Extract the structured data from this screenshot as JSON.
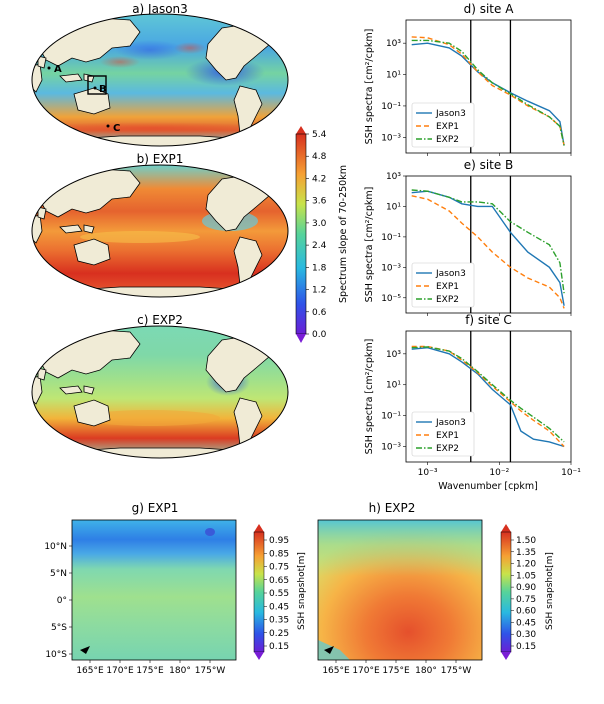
{
  "maps": [
    {
      "title": "a) Jason3",
      "site_labels": [
        "A",
        "B",
        "C"
      ]
    },
    {
      "title": "b) EXP1"
    },
    {
      "title": "c) EXP2"
    }
  ],
  "slope_colorbar": {
    "label": "Spectrum slope of 70-250km",
    "ticks": [
      "5.4",
      "4.8",
      "4.2",
      "3.6",
      "3.0",
      "2.4",
      "1.8",
      "1.2",
      "0.6",
      "0.0"
    ],
    "colormap": "rainbow (purple-blue-cyan-green-yellow-orange-red)"
  },
  "spectra": {
    "xlabel": "Wavenumber [cpkm]",
    "ylabel": "SSH spectra [cm²/cpkm]",
    "xticks": [
      "10⁻³",
      "10⁻²",
      "10⁻¹"
    ],
    "legend": [
      "Jason3",
      "EXP1",
      "EXP2"
    ],
    "colors": {
      "Jason3": "#1f77b4",
      "EXP1": "#ff7f0e",
      "EXP2": "#2ca02c"
    },
    "panels": [
      {
        "title": "d) site A",
        "yticks": [
          "10³",
          "10¹",
          "10⁻¹",
          "10⁻³"
        ]
      },
      {
        "title": "e) site B",
        "yticks": [
          "10³",
          "10¹",
          "10⁻¹",
          "10⁻³",
          "10⁻⁵"
        ]
      },
      {
        "title": "f) site C",
        "yticks": [
          "10³",
          "10¹",
          "10⁻¹",
          "10⁻³"
        ]
      }
    ]
  },
  "chart_data": [
    {
      "type": "line",
      "title": "d) site A",
      "log_x": true,
      "log_y": true,
      "xlim": [
        0.0005,
        0.1
      ],
      "ylim": [
        0.0001,
        30000
      ],
      "xlabel": "",
      "ylabel": "SSH spectra [cm²/cpkm]",
      "vlines": [
        0.004,
        0.0143
      ],
      "legend_loc": "lower-left",
      "series": [
        {
          "name": "Jason3",
          "points": [
            [
              0.0006,
              800
            ],
            [
              0.001,
              1000
            ],
            [
              0.002,
              500
            ],
            [
              0.003,
              150
            ],
            [
              0.005,
              15
            ],
            [
              0.008,
              3
            ],
            [
              0.0143,
              0.7
            ],
            [
              0.025,
              0.2
            ],
            [
              0.05,
              0.05
            ],
            [
              0.07,
              0.01
            ],
            [
              0.08,
              0.0003
            ]
          ]
        },
        {
          "name": "EXP1",
          "points": [
            [
              0.0006,
              2500
            ],
            [
              0.001,
              2200
            ],
            [
              0.002,
              800
            ],
            [
              0.003,
              200
            ],
            [
              0.005,
              15
            ],
            [
              0.008,
              2
            ],
            [
              0.0143,
              0.5
            ],
            [
              0.025,
              0.1
            ],
            [
              0.05,
              0.02
            ],
            [
              0.07,
              0.005
            ],
            [
              0.08,
              0.0003
            ]
          ]
        },
        {
          "name": "EXP2",
          "points": [
            [
              0.0006,
              1500
            ],
            [
              0.001,
              1500
            ],
            [
              0.002,
              1000
            ],
            [
              0.003,
              300
            ],
            [
              0.005,
              20
            ],
            [
              0.008,
              3
            ],
            [
              0.0143,
              0.6
            ],
            [
              0.025,
              0.12
            ],
            [
              0.05,
              0.02
            ],
            [
              0.07,
              0.005
            ],
            [
              0.08,
              0.0003
            ]
          ]
        }
      ]
    },
    {
      "type": "line",
      "title": "e) site B",
      "log_x": true,
      "log_y": true,
      "xlim": [
        0.0005,
        0.1
      ],
      "ylim": [
        1e-06,
        1000
      ],
      "xlabel": "",
      "ylabel": "SSH spectra [cm²/cpkm]",
      "vlines": [
        0.004,
        0.0143
      ],
      "legend_loc": "lower-left",
      "series": [
        {
          "name": "Jason3",
          "points": [
            [
              0.0006,
              80
            ],
            [
              0.001,
              100
            ],
            [
              0.002,
              40
            ],
            [
              0.003,
              15
            ],
            [
              0.005,
              10
            ],
            [
              0.008,
              10
            ],
            [
              0.0143,
              0.2
            ],
            [
              0.025,
              0.01
            ],
            [
              0.05,
              0.001
            ],
            [
              0.07,
              0.0001
            ],
            [
              0.08,
              3e-06
            ]
          ]
        },
        {
          "name": "EXP1",
          "points": [
            [
              0.0006,
              50
            ],
            [
              0.001,
              30
            ],
            [
              0.002,
              5
            ],
            [
              0.003,
              0.8
            ],
            [
              0.005,
              0.1
            ],
            [
              0.008,
              0.01
            ],
            [
              0.0143,
              0.001
            ],
            [
              0.025,
              0.0002
            ],
            [
              0.05,
              5e-05
            ],
            [
              0.07,
              1e-05
            ],
            [
              0.08,
              2e-06
            ]
          ]
        },
        {
          "name": "EXP2",
          "points": [
            [
              0.0006,
              120
            ],
            [
              0.001,
              100
            ],
            [
              0.002,
              40
            ],
            [
              0.003,
              20
            ],
            [
              0.005,
              20
            ],
            [
              0.008,
              15
            ],
            [
              0.0143,
              1
            ],
            [
              0.025,
              0.2
            ],
            [
              0.05,
              0.03
            ],
            [
              0.07,
              0.002
            ],
            [
              0.08,
              2e-05
            ]
          ]
        }
      ]
    },
    {
      "type": "line",
      "title": "f) site C",
      "log_x": true,
      "log_y": true,
      "xlim": [
        0.0005,
        0.1
      ],
      "ylim": [
        0.0001,
        30000
      ],
      "xlabel": "Wavenumber [cpkm]",
      "ylabel": "SSH spectra [cm²/cpkm]",
      "vlines": [
        0.004,
        0.0143
      ],
      "legend_loc": "lower-left",
      "series": [
        {
          "name": "Jason3",
          "points": [
            [
              0.0006,
              2000
            ],
            [
              0.001,
              2500
            ],
            [
              0.002,
              1000
            ],
            [
              0.003,
              300
            ],
            [
              0.005,
              50
            ],
            [
              0.008,
              5
            ],
            [
              0.0143,
              0.5
            ],
            [
              0.02,
              0.01
            ],
            [
              0.03,
              0.003
            ],
            [
              0.05,
              0.002
            ],
            [
              0.08,
              0.001
            ]
          ]
        },
        {
          "name": "EXP1",
          "points": [
            [
              0.0006,
              3000
            ],
            [
              0.001,
              3000
            ],
            [
              0.002,
              1500
            ],
            [
              0.003,
              400
            ],
            [
              0.005,
              60
            ],
            [
              0.008,
              8
            ],
            [
              0.0143,
              0.8
            ],
            [
              0.02,
              0.2
            ],
            [
              0.03,
              0.05
            ],
            [
              0.05,
              0.01
            ],
            [
              0.08,
              0.001
            ]
          ]
        },
        {
          "name": "EXP2",
          "points": [
            [
              0.0006,
              2500
            ],
            [
              0.001,
              2800
            ],
            [
              0.002,
              1500
            ],
            [
              0.003,
              500
            ],
            [
              0.005,
              70
            ],
            [
              0.008,
              10
            ],
            [
              0.0143,
              1
            ],
            [
              0.02,
              0.3
            ],
            [
              0.03,
              0.08
            ],
            [
              0.05,
              0.015
            ],
            [
              0.08,
              0.002
            ]
          ]
        }
      ]
    },
    {
      "type": "heatmap",
      "title": "g) EXP1",
      "yticks": [
        "10°N",
        "5°N",
        "0°",
        "5°S",
        "10°S"
      ],
      "xticks": [
        "165°E",
        "170°E",
        "175°E",
        "180°",
        "175°W"
      ],
      "colorbar": {
        "label": "SSH snapshot[m]",
        "ticks": [
          "0.95",
          "0.85",
          "0.75",
          "0.65",
          "0.55",
          "0.45",
          "0.35",
          "0.25",
          "0.15"
        ]
      }
    },
    {
      "type": "heatmap",
      "title": "h) EXP2",
      "yticks": [],
      "xticks": [
        "165°E",
        "170°E",
        "175°E",
        "180°",
        "175°W"
      ],
      "colorbar": {
        "label": "SSH snapshot[m]",
        "ticks": [
          "1.50",
          "1.35",
          "1.20",
          "1.05",
          "0.90",
          "0.75",
          "0.60",
          "0.45",
          "0.30",
          "0.15"
        ]
      }
    }
  ]
}
